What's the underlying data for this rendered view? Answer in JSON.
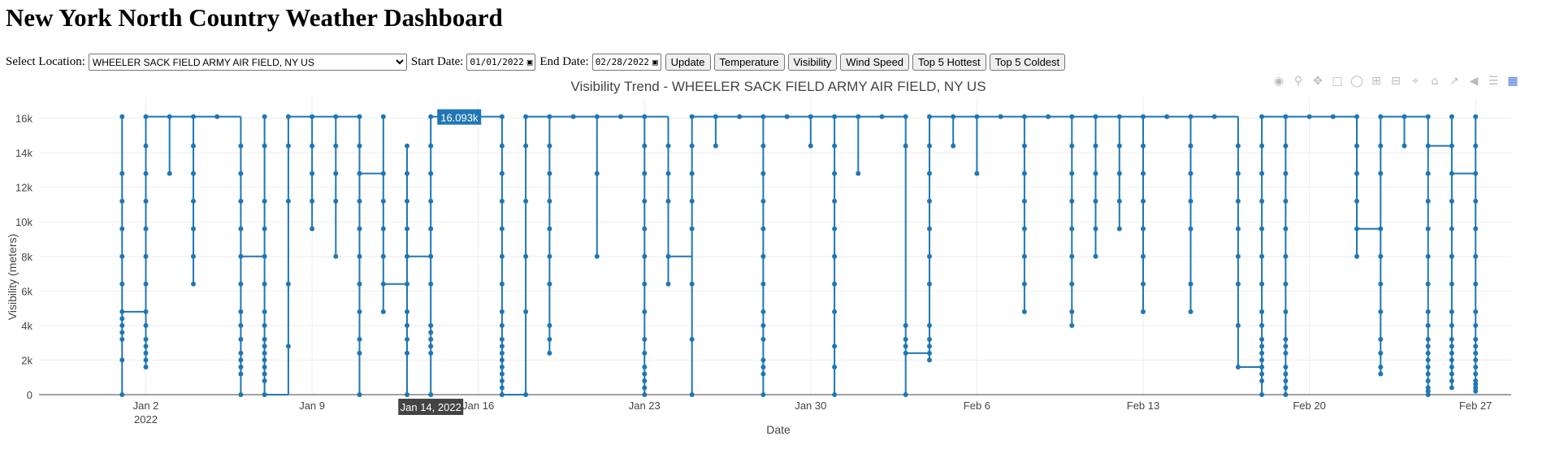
{
  "page": {
    "title": "New York North Country Weather Dashboard"
  },
  "controls": {
    "location_label": "Select Location:",
    "location_value": "WHEELER SACK FIELD ARMY AIR FIELD, NY US",
    "start_label": "Start Date:",
    "start_value": "01/01/2022",
    "end_label": "End Date:",
    "end_value": "02/28/2022",
    "buttons": [
      "Update",
      "Temperature",
      "Visibility",
      "Wind Speed",
      "Top 5 Hottest",
      "Top 5 Coldest"
    ]
  },
  "modebar": [
    "camera-icon",
    "zoom-icon",
    "pan-icon",
    "box-select-icon",
    "lasso-icon",
    "zoom-in-icon",
    "zoom-out-icon",
    "autoscale-icon",
    "reset-axes-icon",
    "spike-lines-icon",
    "hover-closest-icon",
    "hover-compare-icon",
    "plotly-logo-icon"
  ],
  "tooltip": {
    "value": "16.093k",
    "date": "Jan 14, 2022"
  },
  "chart_data": {
    "type": "line",
    "title": "Visibility Trend - WHEELER SACK FIELD ARMY AIR FIELD, NY US",
    "xlabel": "Date",
    "ylabel": "Visibility (meters)",
    "xlim": [
      "2021-12-28 12:00",
      "2022-02-28 12:00"
    ],
    "ylim": [
      0,
      17200
    ],
    "grid": true,
    "x_ticks": [
      {
        "date": "2022-01-02",
        "label": "Jan 2",
        "sublabel": "2022"
      },
      {
        "date": "2022-01-09",
        "label": "Jan 9"
      },
      {
        "date": "2022-01-16",
        "label": "Jan 16"
      },
      {
        "date": "2022-01-23",
        "label": "Jan 23"
      },
      {
        "date": "2022-01-30",
        "label": "Jan 30"
      },
      {
        "date": "2022-02-06",
        "label": "Feb 6"
      },
      {
        "date": "2022-02-13",
        "label": "Feb 13"
      },
      {
        "date": "2022-02-20",
        "label": "Feb 20"
      },
      {
        "date": "2022-02-27",
        "label": "Feb 27"
      }
    ],
    "y_ticks": [
      {
        "value": 0,
        "label": "0"
      },
      {
        "value": 2000,
        "label": "2k"
      },
      {
        "value": 4000,
        "label": "4k"
      },
      {
        "value": 6000,
        "label": "6k"
      },
      {
        "value": 8000,
        "label": "8k"
      },
      {
        "value": 10000,
        "label": "10k"
      },
      {
        "value": 12000,
        "label": "12k"
      },
      {
        "value": 14000,
        "label": "14k"
      },
      {
        "value": 16000,
        "label": "16k"
      }
    ],
    "series": [
      {
        "color": "#1f77b4",
        "days": [
          {
            "date": "2022-01-01",
            "drops": [
              0,
              2000,
              3200,
              3600,
              4000,
              4400,
              4800,
              6400,
              8000,
              9600,
              11200,
              12800,
              16093
            ],
            "end": 4800
          },
          {
            "date": "2022-01-02",
            "drops": [
              4800,
              4000,
              3200,
              2800,
              2400,
              2000,
              1600,
              6400,
              8000,
              9600,
              11200,
              12800,
              14400,
              16093
            ],
            "end": 16093
          },
          {
            "date": "2022-01-03",
            "drops": [
              12800
            ],
            "end": 16093
          },
          {
            "date": "2022-01-04",
            "drops": [
              6400,
              8000,
              9600,
              11200,
              12800,
              14400
            ],
            "end": 16093
          },
          {
            "date": "2022-01-05",
            "drops": [],
            "end": 16093
          },
          {
            "date": "2022-01-06",
            "drops": [
              0,
              1200,
              1600,
              2000,
              2400,
              3200,
              4000,
              4800,
              6400,
              8000,
              9600,
              11200,
              12800,
              14400
            ],
            "end": 8000
          },
          {
            "date": "2022-01-07",
            "drops": [
              800,
              1200,
              1600,
              2000,
              2400,
              2800,
              3200,
              4000,
              4800,
              6400,
              8000,
              9600,
              11200,
              14400,
              16093
            ],
            "end": 0
          },
          {
            "date": "2022-01-08",
            "drops": [
              2800,
              6400,
              11200,
              14400,
              16093
            ],
            "end": 16093
          },
          {
            "date": "2022-01-09",
            "drops": [
              9600,
              11200,
              12800,
              14400
            ],
            "end": 16093
          },
          {
            "date": "2022-01-10",
            "drops": [
              8000,
              11200,
              12800,
              14400
            ],
            "end": 16093
          },
          {
            "date": "2022-01-11",
            "drops": [
              0,
              2400,
              3200,
              4800,
              6400,
              8000,
              9600,
              11200,
              14400,
              16093
            ],
            "end": 12800
          },
          {
            "date": "2022-01-12",
            "drops": [
              4800,
              6400,
              8000,
              9600,
              11200,
              12800,
              16093
            ],
            "end": 6400
          },
          {
            "date": "2022-01-13",
            "drops": [
              0,
              2400,
              3200,
              4000,
              4800,
              6400,
              9600,
              11200,
              12800,
              14400
            ],
            "end": 8000
          },
          {
            "date": "2022-01-14",
            "drops": [
              0,
              2400,
              2800,
              3200,
              3600,
              4000,
              6400,
              8000,
              9600,
              11200,
              12800,
              14400
            ],
            "end": 16093
          },
          {
            "date": "2022-01-17",
            "drops": [
              0,
              400,
              800,
              1200,
              1600,
              2000,
              2400,
              2800,
              3200,
              4000,
              4800,
              6400,
              8000,
              9600,
              11200,
              12800,
              14400,
              16093
            ],
            "end": 0
          },
          {
            "date": "2022-01-18",
            "drops": [
              0,
              4800,
              8000,
              11200,
              14400
            ],
            "end": 16093
          },
          {
            "date": "2022-01-19",
            "drops": [
              2400,
              3200,
              4000,
              6400,
              8000,
              9600,
              11200,
              12800,
              14400
            ],
            "end": 16093
          },
          {
            "date": "2022-01-20",
            "drops": [],
            "end": 16093
          },
          {
            "date": "2022-01-21",
            "drops": [
              8000,
              12800
            ],
            "end": 16093
          },
          {
            "date": "2022-01-22",
            "drops": [],
            "end": 16093
          },
          {
            "date": "2022-01-23",
            "drops": [
              0,
              400,
              800,
              1200,
              1600,
              2400,
              3200,
              4800,
              6400,
              8000,
              9600,
              11200,
              12800,
              14400
            ],
            "end": 16093
          },
          {
            "date": "2022-01-24",
            "drops": [
              6400,
              8000,
              11200,
              12800,
              14400
            ],
            "end": 8000
          },
          {
            "date": "2022-01-25",
            "drops": [
              0,
              3200,
              6400,
              9600,
              11200,
              12800,
              14400,
              16093
            ],
            "end": 16093
          },
          {
            "date": "2022-01-26",
            "drops": [
              14400
            ],
            "end": 16093
          },
          {
            "date": "2022-01-27",
            "drops": [],
            "end": 16093
          },
          {
            "date": "2022-01-28",
            "drops": [
              0,
              1200,
              1600,
              2000,
              3200,
              4000,
              4800,
              6400,
              8000,
              9600,
              11200,
              12800,
              14400
            ],
            "end": 16093
          },
          {
            "date": "2022-01-29",
            "drops": [],
            "end": 16093
          },
          {
            "date": "2022-01-30",
            "drops": [
              14400
            ],
            "end": 16093
          },
          {
            "date": "2022-01-31",
            "drops": [
              0,
              1600,
              2800,
              4800,
              6400,
              8000,
              9600,
              11200,
              12800,
              14400
            ],
            "end": 16093
          },
          {
            "date": "2022-02-01",
            "drops": [
              12800
            ],
            "end": 16093
          },
          {
            "date": "2022-02-02",
            "drops": [],
            "end": 16093
          },
          {
            "date": "2022-02-03",
            "drops": [
              0,
              2400,
              2800,
              3200,
              4000,
              14400,
              16093
            ],
            "end": 2400
          },
          {
            "date": "2022-02-04",
            "drops": [
              2000,
              2400,
              2800,
              3200,
              4000,
              6400,
              8000,
              9600,
              11200,
              12800,
              14400
            ],
            "end": 16093
          },
          {
            "date": "2022-02-05",
            "drops": [
              14400
            ],
            "end": 16093
          },
          {
            "date": "2022-02-06",
            "drops": [
              12800
            ],
            "end": 16093
          },
          {
            "date": "2022-02-07",
            "drops": [],
            "end": 16093
          },
          {
            "date": "2022-02-08",
            "drops": [
              4800,
              6400,
              8000,
              9600,
              11200,
              12800,
              14400
            ],
            "end": 16093
          },
          {
            "date": "2022-02-09",
            "drops": [],
            "end": 16093
          },
          {
            "date": "2022-02-10",
            "drops": [
              4000,
              4800,
              6400,
              8000,
              9600,
              11200,
              12800,
              14400
            ],
            "end": 16093
          },
          {
            "date": "2022-02-11",
            "drops": [
              8000,
              9600,
              11200,
              12800,
              14400
            ],
            "end": 16093
          },
          {
            "date": "2022-02-12",
            "drops": [
              9600,
              11200,
              12800,
              14400
            ],
            "end": 16093
          },
          {
            "date": "2022-02-13",
            "drops": [
              4800,
              6400,
              8000,
              9600,
              11200,
              12800,
              14400
            ],
            "end": 16093
          },
          {
            "date": "2022-02-14",
            "drops": [],
            "end": 16093
          },
          {
            "date": "2022-02-15",
            "drops": [
              4800,
              6400,
              9600,
              11200,
              12800,
              14400
            ],
            "end": 16093
          },
          {
            "date": "2022-02-16",
            "drops": [],
            "end": 16093
          },
          {
            "date": "2022-02-17",
            "drops": [
              1600,
              4000,
              6400,
              8000,
              9600,
              11200,
              12800,
              14400
            ],
            "end": 1600
          },
          {
            "date": "2022-02-18",
            "drops": [
              0,
              800,
              1200,
              1600,
              2000,
              2400,
              2800,
              3200,
              4000,
              4800,
              6400,
              8000,
              9600,
              11200,
              12800,
              14400
            ],
            "end": 16093
          },
          {
            "date": "2022-02-19",
            "drops": [
              0,
              400,
              800,
              1200,
              1600,
              2400,
              2800,
              3200,
              4800,
              6400,
              8000,
              9600,
              11200,
              12800,
              14400
            ],
            "end": 16093
          },
          {
            "date": "2022-02-20",
            "drops": [],
            "end": 16093
          },
          {
            "date": "2022-02-21",
            "drops": [],
            "end": 16093
          },
          {
            "date": "2022-02-22",
            "drops": [
              8000,
              11200,
              12800,
              14400,
              16093
            ],
            "end": 9600
          },
          {
            "date": "2022-02-23",
            "drops": [
              1200,
              1600,
              2400,
              3200,
              4800,
              6400,
              8000,
              9600,
              12800,
              14400
            ],
            "end": 16093
          },
          {
            "date": "2022-02-24",
            "drops": [
              14400
            ],
            "end": 16093
          },
          {
            "date": "2022-02-25",
            "drops": [
              0,
              200,
              400,
              800,
              1200,
              1600,
              2000,
              2400,
              2800,
              3200,
              4000,
              4800,
              6400,
              8000,
              9600,
              11200,
              12800,
              16093
            ],
            "end": 14400
          },
          {
            "date": "2022-02-26",
            "drops": [
              400,
              800,
              1200,
              1600,
              2000,
              2400,
              2800,
              3200,
              4000,
              4800,
              6400,
              8000,
              9600,
              11200,
              14400,
              16093
            ],
            "end": 12800
          },
          {
            "date": "2022-02-27",
            "drops": [
              200,
              400,
              600,
              800,
              1200,
              1600,
              2000,
              2400,
              2800,
              3200,
              4000,
              4800,
              6400,
              8000,
              9600,
              11200,
              12800,
              16093
            ],
            "end": 14400
          }
        ]
      }
    ]
  }
}
